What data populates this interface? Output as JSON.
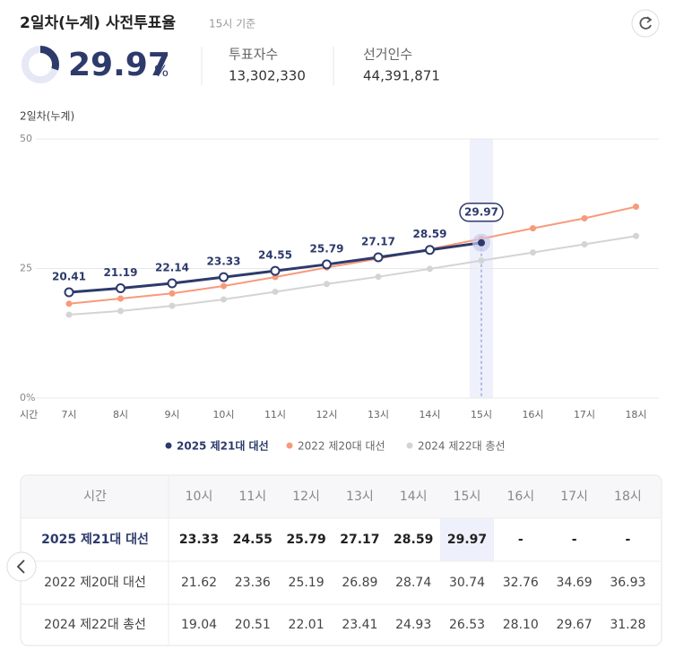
{
  "header": {
    "title": "2일차(누계) 사전투표율",
    "subtitle": "15시 기준",
    "rate": 29.97,
    "rate_unit": "%",
    "stats": [
      {
        "label": "투표자수",
        "value": "13,302,330"
      },
      {
        "label": "선거인수",
        "value": "44,391,871"
      }
    ]
  },
  "chart_data": {
    "type": "line",
    "ylabel": "2일차(누계)",
    "xlabel": "시간",
    "categories": [
      "7시",
      "8시",
      "9시",
      "10시",
      "11시",
      "12시",
      "13시",
      "14시",
      "15시",
      "16시",
      "17시",
      "18시"
    ],
    "series": [
      {
        "name": "2025 제21대 대선",
        "color": "#2d3a6b",
        "values": [
          20.41,
          21.19,
          22.14,
          23.33,
          24.55,
          25.79,
          27.17,
          28.59,
          29.97,
          null,
          null,
          null
        ]
      },
      {
        "name": "2022 제20대 대선",
        "color": "#f79a7c",
        "values": [
          18.2,
          19.2,
          20.2,
          21.62,
          23.36,
          25.19,
          26.89,
          28.74,
          30.74,
          32.76,
          34.69,
          36.93
        ]
      },
      {
        "name": "2024 제22대 총선",
        "color": "#d4d4d4",
        "values": [
          16.1,
          16.8,
          17.8,
          19.04,
          20.51,
          22.01,
          23.41,
          24.93,
          26.53,
          28.1,
          29.67,
          31.28
        ]
      }
    ],
    "ylim": [
      0,
      50
    ],
    "yticks": [
      {
        "value": 0,
        "label": "0%"
      },
      25,
      50
    ],
    "grid": true
  },
  "table": {
    "header": [
      "시간",
      "10시",
      "11시",
      "12시",
      "13시",
      "14시",
      "15시",
      "16시",
      "17시",
      "18시"
    ],
    "rows": [
      {
        "name": "2025 제21대 대선",
        "values": [
          "23.33",
          "24.55",
          "25.79",
          "27.17",
          "28.59",
          "29.97",
          "-",
          "-",
          "-"
        ]
      },
      {
        "name": "2022 제20대 대선",
        "values": [
          "21.62",
          "23.36",
          "25.19",
          "26.89",
          "28.74",
          "30.74",
          "32.76",
          "34.69",
          "36.93"
        ]
      },
      {
        "name": "2024 제22대 총선",
        "values": [
          "19.04",
          "20.51",
          "22.01",
          "23.41",
          "24.93",
          "26.53",
          "28.10",
          "29.67",
          "31.28"
        ]
      }
    ]
  }
}
